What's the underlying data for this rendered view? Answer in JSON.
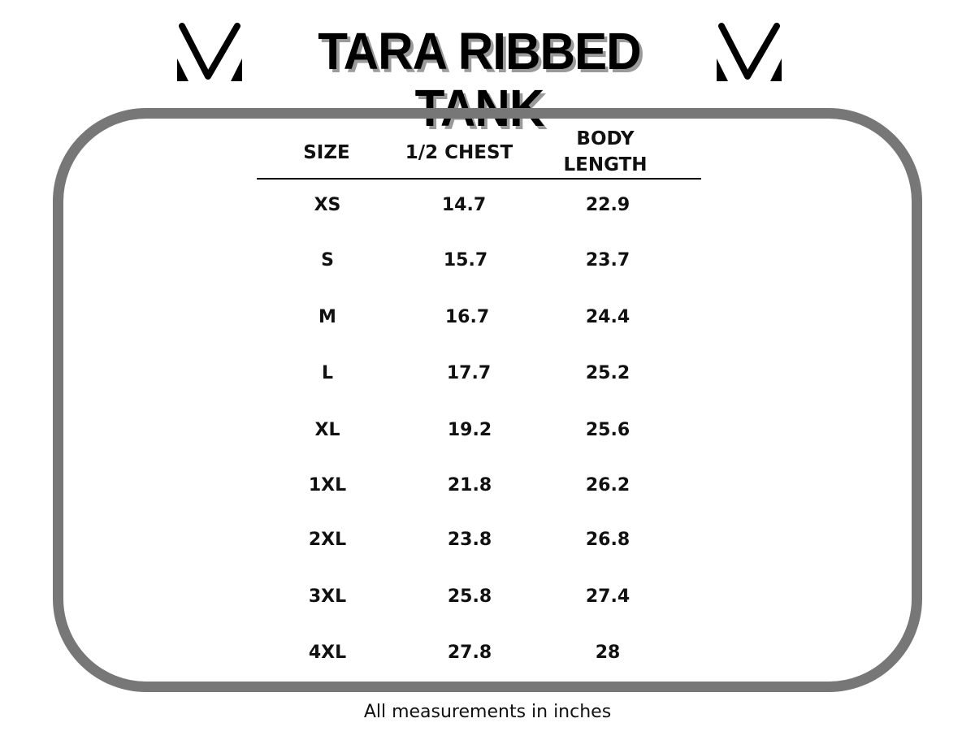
{
  "title": "TARA RIBBED TANK",
  "logo_icon": "v-chevron-logo",
  "table": {
    "headers": {
      "size": "SIZE",
      "chest": "1/2 CHEST",
      "body_line1": "BODY",
      "body_line2": "LENGTH"
    },
    "rows": [
      {
        "size": "XS",
        "chest": "14.7",
        "body": "22.9"
      },
      {
        "size": "S",
        "chest": "15.7",
        "body": "23.7"
      },
      {
        "size": "M",
        "chest": "16.7",
        "body": "24.4"
      },
      {
        "size": "L",
        "chest": "17.7",
        "body": "25.2"
      },
      {
        "size": "XL",
        "chest": "19.2",
        "body": "25.6"
      },
      {
        "size": "1XL",
        "chest": "21.8",
        "body": "26.2"
      },
      {
        "size": "2XL",
        "chest": "23.8",
        "body": "26.8"
      },
      {
        "size": "3XL",
        "chest": "25.8",
        "body": "27.4"
      },
      {
        "size": "4XL",
        "chest": "27.8",
        "body": "28"
      }
    ]
  },
  "footer": "All measurements in inches",
  "colors": {
    "frame": "#777777",
    "text": "#111111",
    "title_shadow": "#9a9a9a"
  }
}
